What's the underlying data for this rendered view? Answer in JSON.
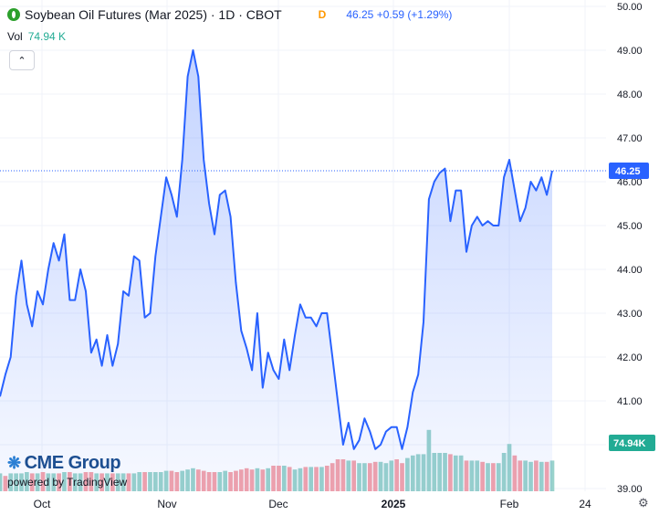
{
  "header": {
    "title": "Soybean Oil Futures (Mar 2025) · 1D · CBOT",
    "badge": "D",
    "quote": "46.25  +0.59 (+1.29%)"
  },
  "volume": {
    "label": "Vol",
    "value": "74.94 K"
  },
  "collapse_icon": "chevron-up-icon",
  "brand": {
    "name": "CME Group",
    "powered": "powered by TradingView"
  },
  "settings_icon": "gear-icon",
  "colors": {
    "line": "#2962ff",
    "up": "#22ab94",
    "down": "#f7525f",
    "grid": "#f0f3fa"
  },
  "chart_data": {
    "type": "area",
    "title": "Soybean Oil Futures (Mar 2025)",
    "y_ticks": [
      "50.00",
      "49.00",
      "48.00",
      "47.00",
      "46.00",
      "45.00",
      "44.00",
      "43.00",
      "42.00",
      "41.00",
      "40.00",
      "39.00"
    ],
    "ylim": [
      39,
      50
    ],
    "x_ticks": [
      "Oct",
      "Nov",
      "Dec",
      "2025",
      "Feb",
      "24"
    ],
    "last_price_label": "46.25",
    "volume_label": "74.94K",
    "grid": true,
    "series": [
      {
        "name": "Price",
        "values": [
          41.1,
          41.6,
          42.0,
          43.4,
          44.2,
          43.2,
          42.7,
          43.5,
          43.2,
          44.0,
          44.6,
          44.2,
          44.8,
          43.3,
          43.3,
          44.0,
          43.5,
          42.1,
          42.4,
          41.8,
          42.5,
          41.8,
          42.3,
          43.5,
          43.4,
          44.3,
          44.2,
          42.9,
          43.0,
          44.3,
          45.2,
          46.1,
          45.7,
          45.2,
          46.5,
          48.4,
          49.0,
          48.4,
          46.5,
          45.5,
          44.8,
          45.7,
          45.8,
          45.2,
          43.7,
          42.6,
          42.2,
          41.7,
          43.0,
          41.3,
          42.1,
          41.7,
          41.5,
          42.4,
          41.7,
          42.5,
          43.2,
          42.9,
          42.9,
          42.7,
          43.0,
          43.0,
          42.0,
          41.0,
          40.0,
          40.5,
          39.9,
          40.1,
          40.6,
          40.3,
          39.9,
          40.0,
          40.3,
          40.4,
          40.4,
          39.9,
          40.4,
          41.2,
          41.6,
          42.8,
          45.6,
          46.0,
          46.2,
          46.3,
          45.1,
          45.8,
          45.8,
          44.4,
          45.0,
          45.2,
          45.0,
          45.1,
          45.0,
          45.0,
          46.1,
          46.5,
          45.8,
          45.1,
          45.4,
          46.0,
          45.8,
          46.1,
          45.7,
          46.25
        ]
      }
    ],
    "volume_series": {
      "name": "Volume",
      "values": [
        14,
        12,
        14,
        14,
        14,
        15,
        14,
        14,
        15,
        14,
        14,
        14,
        15,
        15,
        14,
        14,
        15,
        15,
        14,
        14,
        14,
        14,
        14,
        14,
        14,
        14,
        15,
        15,
        15,
        15,
        15,
        16,
        16,
        15,
        16,
        17,
        18,
        17,
        16,
        15,
        15,
        15,
        16,
        15,
        16,
        17,
        18,
        17,
        18,
        17,
        18,
        20,
        20,
        20,
        19,
        17,
        18,
        19,
        19,
        19,
        19,
        20,
        22,
        25,
        25,
        24,
        24,
        22,
        22,
        22,
        23,
        23,
        22,
        24,
        25,
        22,
        26,
        28,
        29,
        29,
        48,
        30,
        30,
        30,
        29,
        28,
        28,
        24,
        24,
        24,
        23,
        22,
        22,
        22,
        30,
        37,
        28,
        24,
        24,
        23,
        24,
        23,
        23,
        24
      ],
      "up": [
        1,
        0,
        1,
        1,
        1,
        1,
        0,
        1,
        0,
        1,
        1,
        0,
        1,
        0,
        1,
        1,
        0,
        0,
        1,
        0,
        1,
        0,
        1,
        1,
        0,
        1,
        1,
        0,
        1,
        1,
        1,
        1,
        0,
        0,
        1,
        1,
        1,
        0,
        0,
        0,
        0,
        1,
        1,
        0,
        0,
        0,
        0,
        0,
        1,
        0,
        1,
        0,
        0,
        1,
        0,
        1,
        1,
        0,
        1,
        0,
        1,
        0,
        0,
        0,
        0,
        1,
        0,
        1,
        1,
        0,
        0,
        1,
        1,
        1,
        0,
        0,
        1,
        1,
        1,
        1,
        1,
        1,
        1,
        1,
        0,
        1,
        1,
        0,
        1,
        1,
        0,
        1,
        0,
        1,
        1,
        1,
        0,
        0,
        1,
        1,
        0,
        1,
        0,
        1
      ]
    }
  }
}
